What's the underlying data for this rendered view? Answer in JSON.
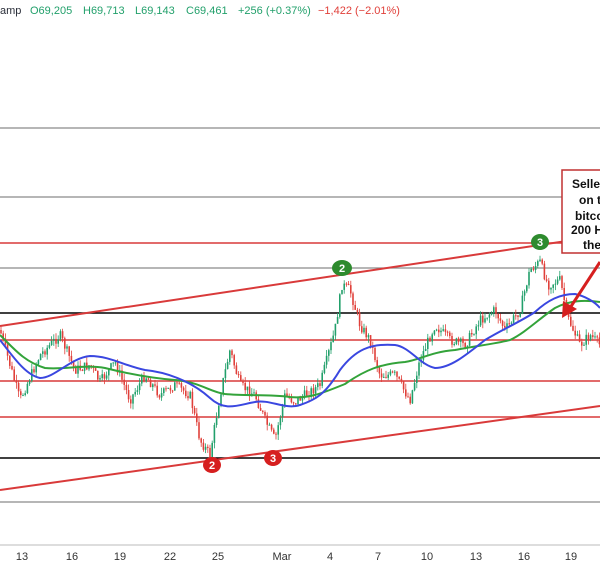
{
  "header": {
    "source_fragment": "amp",
    "open": "O69,205",
    "high": "H69,713",
    "low": "L69,143",
    "close": "C69,461",
    "change": "+256 (+0.37%)",
    "change2": "−1,422 (−2.01%)"
  },
  "annotation": {
    "lines": [
      "Selle",
      "on t",
      "bitco",
      "200 H",
      "the"
    ]
  },
  "colors": {
    "up_candle": "#22a06b",
    "down_candle": "#e0403a",
    "ma_blue": "#3a47e0",
    "ma_green": "#33a33a",
    "trend_red": "#d93a3a",
    "level_black": "#000000",
    "level_gray": "#8a8a8a",
    "badge_green": "#2e8b2e",
    "badge_red": "#d61f1f"
  },
  "chart_data": {
    "type": "line",
    "title": "",
    "xlabel": "",
    "ylabel": "",
    "x_ticks": [
      "13",
      "16",
      "19",
      "22",
      "25",
      "Mar",
      "4",
      "7",
      "10",
      "13",
      "16",
      "19"
    ],
    "markers": [
      {
        "label": "2",
        "color": "green",
        "at": "4"
      },
      {
        "label": "3",
        "color": "green",
        "at": "17"
      },
      {
        "label": "2",
        "color": "red",
        "at": "24"
      },
      {
        "label": "3",
        "color": "red",
        "at": "29"
      }
    ],
    "grid": false,
    "legend": "none"
  }
}
